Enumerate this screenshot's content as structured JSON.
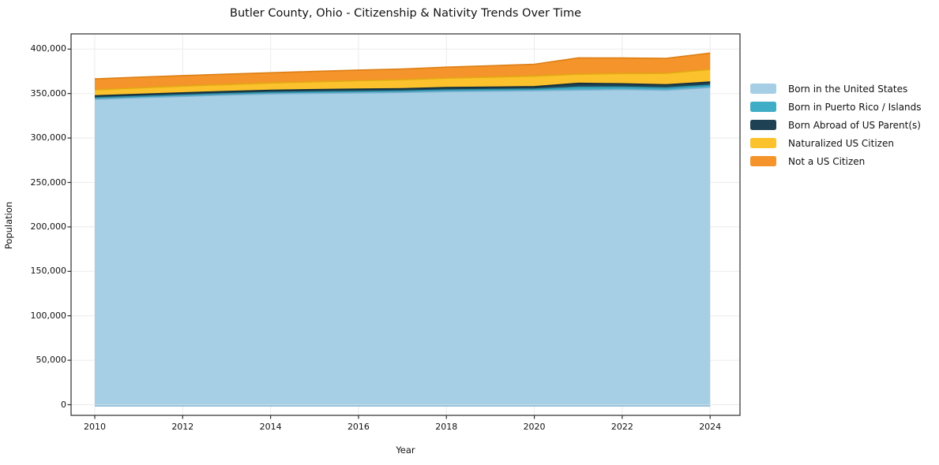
{
  "page": {
    "title": "Butler County, Ohio - Citizenship & Nativity Trends Over Time"
  },
  "chart_data": {
    "type": "area",
    "stacked": true,
    "title": "Butler County, Ohio - Citizenship & Nativity Trends Over Time",
    "xlabel": "Year",
    "ylabel": "Population",
    "grid": true,
    "legend_position": "right",
    "xlim": [
      2010,
      2024
    ],
    "ylim": [
      0,
      400000
    ],
    "x": [
      2010,
      2011,
      2012,
      2013,
      2014,
      2015,
      2016,
      2017,
      2018,
      2019,
      2020,
      2021,
      2022,
      2023,
      2024
    ],
    "series": [
      {
        "name": "Born in the United States",
        "color": "#A6CFE5",
        "edge": "#79AFCF",
        "values": [
          343600,
          345300,
          346800,
          348300,
          349600,
          350200,
          350700,
          351200,
          352200,
          352700,
          353200,
          353900,
          354500,
          353800,
          356800
        ]
      },
      {
        "name": "Born in Puerto Rico / Islands",
        "color": "#3FADC5",
        "edge": "#2E91A7",
        "values": [
          1500,
          1500,
          1600,
          1600,
          1600,
          1700,
          1700,
          1700,
          1800,
          1800,
          1800,
          3400,
          2900,
          2700,
          2600
        ]
      },
      {
        "name": "Born Abroad of US Parent(s)",
        "color": "#1E4254",
        "edge": "#142F3D",
        "values": [
          2300,
          2300,
          2400,
          2400,
          2500,
          2500,
          2600,
          2600,
          2700,
          2700,
          2800,
          4200,
          3600,
          3400,
          3500
        ]
      },
      {
        "name": "Naturalized US Citizen",
        "color": "#FCC22D",
        "edge": "#E3A914",
        "values": [
          6800,
          7200,
          7500,
          7800,
          8200,
          8800,
          9400,
          10000,
          10600,
          11200,
          11800,
          10200,
          11500,
          12800,
          14200
        ]
      },
      {
        "name": "Not a US Citizen",
        "color": "#F4942A",
        "edge": "#DD7F15",
        "values": [
          12300,
          12100,
          11900,
          11700,
          11500,
          11700,
          12000,
          12200,
          12400,
          12900,
          13400,
          18500,
          17500,
          16800,
          18500
        ]
      }
    ],
    "xticks": {
      "values": [
        2010,
        2012,
        2014,
        2016,
        2018,
        2020,
        2022,
        2024
      ],
      "labels": [
        "2010",
        "2012",
        "2014",
        "2016",
        "2018",
        "2020",
        "2022",
        "2024"
      ]
    },
    "yticks": {
      "values": [
        0,
        50000,
        100000,
        150000,
        200000,
        250000,
        300000,
        350000,
        400000
      ],
      "labels": [
        "0",
        "50,000",
        "100,000",
        "150,000",
        "200,000",
        "250,000",
        "300,000",
        "350,000",
        "400,000"
      ]
    },
    "colors": {
      "grid": "#EBEBEB",
      "spine": "#2B2B2B",
      "background": "#FFFFFF"
    }
  }
}
